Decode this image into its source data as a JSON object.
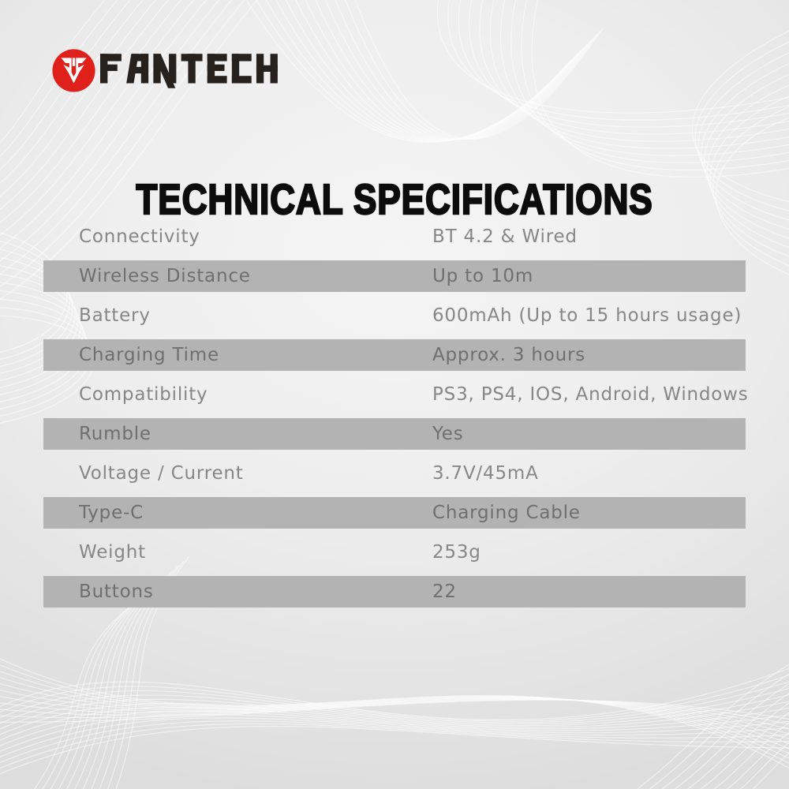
{
  "brand": {
    "name": "FANTECH",
    "logo_icon": "fantech-falcon-icon",
    "accent_red": "#e0201a",
    "wordmark_color": "#27211d"
  },
  "title": "TECHNICAL SPECIFICATIONS",
  "specs": {
    "band_color": "#b3b3b3",
    "text_color": "#878787",
    "rows": [
      {
        "label": "Connectivity",
        "value": "BT 4.2 & Wired"
      },
      {
        "label": "Wireless Distance",
        "value": "Up to 10m"
      },
      {
        "label": "Battery",
        "value": "600mAh (Up to 15 hours usage)"
      },
      {
        "label": "Charging Time",
        "value": "Approx. 3 hours"
      },
      {
        "label": "Compatibility",
        "value": "PS3, PS4, IOS, Android, Windows"
      },
      {
        "label": "Rumble",
        "value": "Yes"
      },
      {
        "label": "Voltage / Current",
        "value": "3.7V/45mA"
      },
      {
        "label": "Type-C",
        "value": "Charging Cable"
      },
      {
        "label": "Weight",
        "value": "253g"
      },
      {
        "label": "Buttons",
        "value": "22"
      }
    ]
  }
}
